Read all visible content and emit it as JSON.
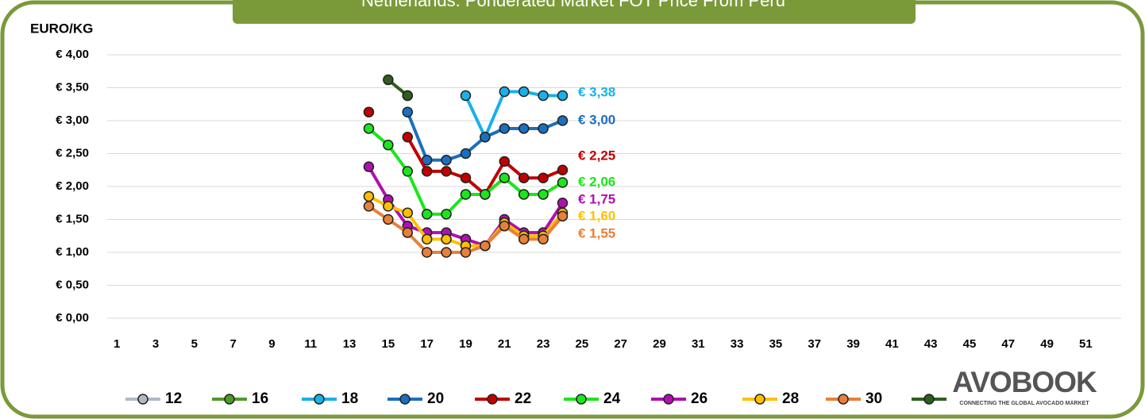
{
  "chart_data": {
    "type": "line",
    "title": "Netherlands: Ponderated Market FOT Price From Peru",
    "y_label": "EURO/KG",
    "x": [
      14,
      15,
      16,
      17,
      18,
      19,
      20,
      21,
      22,
      23,
      24
    ],
    "xlim": [
      0.5,
      52.5
    ],
    "xticks": [
      1,
      3,
      5,
      7,
      9,
      11,
      13,
      15,
      17,
      19,
      21,
      23,
      25,
      27,
      29,
      31,
      33,
      35,
      37,
      39,
      41,
      43,
      45,
      47,
      49,
      51
    ],
    "ylim": [
      0,
      4
    ],
    "yticks": [
      {
        "value": 0,
        "label": "€ 0,00"
      },
      {
        "value": 0.5,
        "label": "€ 0,50"
      },
      {
        "value": 1,
        "label": "€ 1,00"
      },
      {
        "value": 1.5,
        "label": "€ 1,50"
      },
      {
        "value": 2,
        "label": "€ 2,00"
      },
      {
        "value": 2.5,
        "label": "€ 2,50"
      },
      {
        "value": 3,
        "label": "€ 3,00"
      },
      {
        "value": 3.5,
        "label": "€ 3,50"
      },
      {
        "value": 4,
        "label": "€ 4,00"
      }
    ],
    "grid": true,
    "legend": "bottom",
    "series": [
      {
        "name": "12",
        "color": "#b0b8c8",
        "values": [
          null,
          null,
          null,
          null,
          null,
          null,
          null,
          null,
          null,
          null,
          null
        ]
      },
      {
        "name": "16",
        "color": "#4e9a2a",
        "values": [
          null,
          null,
          null,
          null,
          null,
          null,
          null,
          null,
          null,
          null,
          null
        ]
      },
      {
        "name": "18",
        "color": "#1ab0e8",
        "values": [
          null,
          null,
          3.38,
          null,
          null,
          3.38,
          2.75,
          3.44,
          3.44,
          3.38,
          3.38
        ],
        "value_labels": [
          null,
          null,
          null,
          null,
          null,
          null,
          null,
          null,
          null,
          null,
          "€ 3,38"
        ]
      },
      {
        "name": "20",
        "color": "#1a6fbf",
        "values": [
          null,
          null,
          3.13,
          2.4,
          2.4,
          2.5,
          2.75,
          2.88,
          2.88,
          2.88,
          3.0
        ],
        "value_labels": [
          null,
          null,
          null,
          null,
          null,
          null,
          null,
          null,
          null,
          null,
          "€ 3,00"
        ]
      },
      {
        "name": "22",
        "color": "#c00000",
        "values": [
          3.13,
          null,
          2.75,
          2.23,
          2.23,
          2.13,
          1.88,
          2.38,
          2.13,
          2.13,
          2.25
        ],
        "value_labels": [
          null,
          null,
          null,
          null,
          null,
          null,
          null,
          null,
          null,
          null,
          "€ 2,25"
        ]
      },
      {
        "name": "24",
        "color": "#1be61b",
        "values": [
          2.88,
          2.63,
          2.23,
          1.58,
          1.58,
          1.88,
          1.88,
          2.13,
          1.88,
          1.88,
          2.06
        ],
        "value_labels": [
          null,
          null,
          null,
          null,
          null,
          null,
          null,
          null,
          null,
          null,
          "€ 2,06"
        ]
      },
      {
        "name": "26",
        "color": "#b010b0",
        "values": [
          2.3,
          1.8,
          1.4,
          1.3,
          1.3,
          1.2,
          1.1,
          1.5,
          1.3,
          1.3,
          1.75
        ],
        "value_labels": [
          null,
          null,
          null,
          null,
          null,
          null,
          null,
          null,
          null,
          null,
          "€ 1,75"
        ]
      },
      {
        "name": "28",
        "color": "#ffc000",
        "values": [
          1.85,
          1.7,
          1.6,
          1.2,
          1.2,
          1.1,
          1.1,
          1.45,
          1.25,
          1.25,
          1.6
        ],
        "value_labels": [
          null,
          null,
          null,
          null,
          null,
          null,
          null,
          null,
          null,
          null,
          "€ 1,60"
        ]
      },
      {
        "name": "30",
        "color": "#e8803a",
        "values": [
          1.7,
          1.5,
          1.3,
          1.0,
          1.0,
          1.0,
          1.1,
          1.4,
          1.2,
          1.2,
          1.55
        ],
        "value_labels": [
          null,
          null,
          null,
          null,
          null,
          null,
          null,
          null,
          null,
          null,
          "€ 1,55"
        ]
      },
      {
        "name": null,
        "color": "#2e5e1e",
        "values": [
          null,
          3.62,
          3.38,
          null,
          null,
          null,
          null,
          null,
          null,
          null,
          null
        ]
      }
    ]
  },
  "logo": {
    "name": "AVOBOOK",
    "tagline": "CONNECTING THE GLOBAL AVOCADO MARKET"
  }
}
